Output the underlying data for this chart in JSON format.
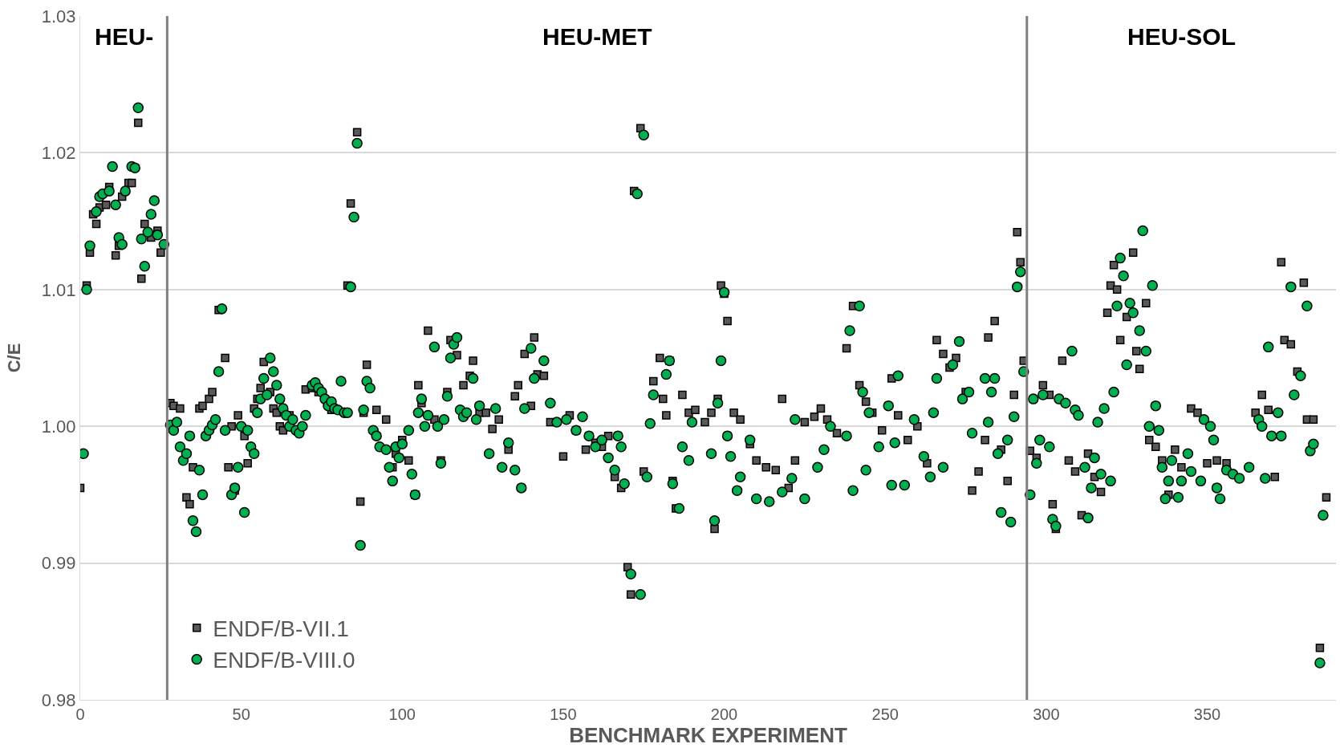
{
  "chart_data": {
    "type": "scatter",
    "xlabel": "BENCHMARK EXPERIMENT",
    "ylabel": "C/E",
    "xlim": [
      0,
      390
    ],
    "xticks": [
      0,
      50,
      100,
      150,
      200,
      250,
      300,
      350
    ],
    "ylim": [
      0.98,
      1.03
    ],
    "yticks": [
      {
        "value": 0.98,
        "label": "0.98"
      },
      {
        "value": 0.99,
        "label": "0.99"
      },
      {
        "value": 1.0,
        "label": "1.00"
      },
      {
        "value": 1.01,
        "label": "1.01"
      },
      {
        "value": 1.02,
        "label": "1.02"
      },
      {
        "value": 1.03,
        "label": "1.03"
      }
    ],
    "grid": "y",
    "legend": "bottom left",
    "ref_lines": [
      {
        "axis": "x",
        "value": 27,
        "color": "#7f7f7f"
      },
      {
        "axis": "x",
        "value": 294,
        "color": "#7f7f7f"
      }
    ],
    "annotations": [
      "HEU-",
      "HEU-MET",
      "HEU-SOL"
    ],
    "series": [
      {
        "name": "ENDF/B-VII.1",
        "color": "#595959",
        "marker": "square",
        "x": [
          0,
          2,
          3,
          4,
          5,
          6,
          8,
          9,
          11,
          12,
          13,
          15,
          16,
          18,
          19,
          20,
          22,
          24,
          25,
          28,
          29,
          31,
          33,
          34,
          35,
          37,
          38,
          40,
          41,
          43,
          45,
          46,
          47,
          48,
          49,
          51,
          52,
          54,
          55,
          56,
          57,
          59,
          60,
          61,
          62,
          63,
          65,
          70,
          72,
          74,
          78,
          83,
          84,
          86,
          87,
          88,
          89,
          92,
          95,
          97,
          98,
          100,
          102,
          104,
          105,
          106,
          108,
          110,
          112,
          114,
          115,
          117,
          119,
          121,
          122,
          124,
          126,
          128,
          130,
          133,
          135,
          136,
          138,
          140,
          141,
          142,
          144,
          146,
          150,
          152,
          154,
          157,
          160,
          162,
          164,
          166,
          168,
          170,
          171,
          172,
          174,
          175,
          178,
          180,
          181,
          182,
          183,
          184,
          185,
          187,
          189,
          191,
          194,
          196,
          197,
          198,
          199,
          200,
          201,
          203,
          205,
          208,
          210,
          213,
          216,
          218,
          220,
          222,
          225,
          228,
          230,
          232,
          235,
          238,
          240,
          242,
          244,
          246,
          249,
          252,
          254,
          257,
          260,
          263,
          266,
          268,
          270,
          272,
          275,
          277,
          279,
          281,
          282,
          284,
          286,
          288,
          290,
          291,
          292,
          293,
          295,
          297,
          299,
          301,
          302,
          303,
          305,
          307,
          309,
          311,
          313,
          315,
          317,
          319,
          320,
          321,
          322,
          323,
          325,
          327,
          328,
          329,
          331,
          332,
          334,
          336,
          338,
          340,
          342,
          345,
          347,
          350,
          353,
          356,
          365,
          367,
          369,
          371,
          373,
          374,
          376,
          378,
          380,
          381,
          383,
          385,
          387
        ],
        "values": [
          0.9955,
          1.0103,
          1.0127,
          1.0155,
          1.0148,
          1.016,
          1.0162,
          1.0175,
          1.0125,
          1.0132,
          1.0168,
          1.0178,
          1.0178,
          1.0222,
          1.0108,
          1.0148,
          1.0138,
          1.0143,
          1.0127,
          1.0017,
          1.0015,
          1.0013,
          0.9948,
          0.9943,
          0.997,
          1.0013,
          1.0015,
          1.002,
          1.0025,
          1.0085,
          1.005,
          0.997,
          1.0,
          0.9953,
          1.0008,
          0.9993,
          0.9973,
          1.0013,
          1.002,
          1.0028,
          1.0047,
          1.0025,
          1.0013,
          1.001,
          1.0,
          0.9997,
          1.0008,
          1.0027,
          1.0028,
          1.0025,
          1.0012,
          1.0103,
          1.0163,
          1.0215,
          0.9945,
          1.001,
          1.0045,
          1.0012,
          1.0005,
          0.997,
          0.998,
          0.999,
          0.9975,
          0.995,
          1.003,
          1.0017,
          1.007,
          1.0005,
          0.9975,
          1.0025,
          1.0063,
          1.0052,
          1.003,
          1.0037,
          1.0048,
          1.001,
          1.001,
          0.9998,
          1.0005,
          0.9983,
          1.0022,
          1.003,
          1.0053,
          1.0015,
          1.0065,
          1.0038,
          1.0037,
          1.0003,
          0.9978,
          1.0008,
          0.9997,
          0.9983,
          0.9988,
          0.9985,
          0.9993,
          0.9963,
          0.9955,
          0.9897,
          0.9877,
          1.0172,
          1.0218,
          0.9967,
          1.0033,
          1.005,
          1.002,
          1.0008,
          1.0048,
          0.996,
          0.994,
          1.0023,
          1.001,
          1.0012,
          1.0003,
          1.001,
          0.9925,
          1.002,
          1.0103,
          1.0097,
          1.0077,
          1.001,
          1.0005,
          0.9987,
          0.9975,
          0.997,
          0.9968,
          1.002,
          0.9955,
          0.9975,
          1.0003,
          1.0007,
          1.0013,
          1.0005,
          0.9995,
          1.0057,
          1.0088,
          1.003,
          1.0018,
          1.001,
          0.9997,
          1.0035,
          1.0008,
          0.999,
          1.0,
          0.9973,
          1.0063,
          1.0053,
          1.0043,
          1.005,
          1.0025,
          0.9953,
          0.9967,
          0.999,
          1.0065,
          1.0077,
          0.9983,
          0.996,
          1.0023,
          1.0142,
          1.012,
          1.0048,
          0.9982,
          0.9977,
          1.003,
          1.0023,
          0.9943,
          0.9925,
          1.0048,
          0.9975,
          0.9967,
          0.9935,
          0.998,
          0.9963,
          0.9952,
          1.0083,
          1.0103,
          1.0118,
          1.01,
          1.0063,
          1.008,
          1.0127,
          1.0055,
          1.0042,
          1.009,
          0.999,
          0.9985,
          0.9975,
          0.995,
          0.9983,
          0.997,
          1.0013,
          1.001,
          0.9973,
          0.9975,
          0.9973,
          1.001,
          1.0023,
          1.0012,
          0.9963,
          1.012,
          1.0063,
          1.006,
          1.004,
          1.0105,
          1.0005,
          1.0005,
          0.9838,
          0.9948
        ]
      },
      {
        "name": "ENDF/B-VIII.0",
        "color": "#00b050",
        "marker": "circle",
        "x": [
          1,
          2,
          3,
          5,
          6,
          7,
          9,
          10,
          11,
          12,
          13,
          14,
          16,
          17,
          18,
          19,
          20,
          21,
          22,
          23,
          24,
          26,
          28,
          29,
          30,
          31,
          32,
          33,
          34,
          35,
          36,
          37,
          38,
          39,
          40,
          41,
          42,
          43,
          44,
          45,
          47,
          48,
          49,
          50,
          51,
          52,
          53,
          54,
          55,
          56,
          57,
          58,
          59,
          60,
          61,
          62,
          63,
          64,
          65,
          66,
          67,
          68,
          69,
          70,
          72,
          73,
          74,
          75,
          76,
          77,
          78,
          79,
          80,
          81,
          82,
          83,
          84,
          85,
          86,
          87,
          88,
          89,
          90,
          91,
          92,
          93,
          95,
          96,
          97,
          98,
          99,
          100,
          102,
          103,
          104,
          105,
          106,
          107,
          108,
          110,
          111,
          112,
          113,
          114,
          115,
          116,
          117,
          118,
          119,
          120,
          122,
          123,
          124,
          127,
          129,
          131,
          133,
          135,
          137,
          138,
          140,
          141,
          144,
          146,
          148,
          151,
          154,
          156,
          158,
          160,
          162,
          164,
          166,
          167,
          168,
          169,
          171,
          173,
          174,
          175,
          176,
          177,
          178,
          182,
          183,
          184,
          186,
          187,
          189,
          190,
          196,
          197,
          198,
          199,
          200,
          201,
          202,
          204,
          205,
          208,
          210,
          214,
          218,
          221,
          222,
          225,
          229,
          231,
          233,
          238,
          239,
          240,
          242,
          243,
          244,
          245,
          248,
          251,
          252,
          253,
          254,
          256,
          259,
          262,
          264,
          265,
          266,
          268,
          271,
          273,
          274,
          276,
          277,
          281,
          282,
          283,
          284,
          285,
          286,
          288,
          289,
          290,
          291,
          292,
          293,
          295,
          296,
          297,
          298,
          299,
          301,
          302,
          303,
          304,
          306,
          308,
          309,
          310,
          312,
          313,
          314,
          315,
          316,
          317,
          318,
          320,
          321,
          322,
          323,
          324,
          325,
          326,
          327,
          329,
          330,
          331,
          332,
          333,
          334,
          335,
          336,
          337,
          338,
          339,
          341,
          342,
          344,
          345,
          348,
          349,
          351,
          352,
          353,
          354,
          356,
          358,
          360,
          363,
          366,
          367,
          368,
          369,
          370,
          372,
          373,
          376,
          377,
          379,
          381,
          382,
          383,
          385,
          386
        ],
        "values": [
          0.998,
          1.01,
          1.0132,
          1.0157,
          1.0168,
          1.017,
          1.0172,
          1.019,
          1.0162,
          1.0138,
          1.0133,
          1.0172,
          1.019,
          1.0189,
          1.0233,
          1.0137,
          1.0117,
          1.0142,
          1.0155,
          1.0165,
          1.014,
          1.0133,
          1.0001,
          0.9997,
          1.0003,
          0.9985,
          0.9975,
          0.998,
          0.9993,
          0.9931,
          0.9923,
          0.9968,
          0.995,
          0.9993,
          0.9997,
          1.0001,
          1.0005,
          1.004,
          1.0086,
          0.9997,
          0.995,
          0.9955,
          0.997,
          1.0,
          0.9937,
          0.9997,
          0.9985,
          0.998,
          1.001,
          1.002,
          1.0035,
          1.0023,
          1.005,
          1.004,
          1.003,
          1.002,
          1.0013,
          1.0008,
          1.0,
          1.0005,
          0.9997,
          0.9995,
          1.0,
          1.0008,
          1.003,
          1.0032,
          1.0028,
          1.0025,
          1.002,
          1.0015,
          1.0018,
          1.0013,
          1.0012,
          1.0033,
          1.001,
          1.001,
          1.0102,
          1.0153,
          1.0207,
          0.9913,
          1.0012,
          1.0033,
          1.0028,
          0.9997,
          0.9993,
          0.9985,
          0.9983,
          0.997,
          0.996,
          0.9985,
          0.9977,
          0.9987,
          0.9997,
          0.9965,
          0.995,
          1.001,
          1.002,
          1.0,
          1.0008,
          1.0058,
          1.0,
          0.9973,
          1.0005,
          1.0022,
          1.005,
          1.006,
          1.0065,
          1.0012,
          1.0007,
          1.001,
          1.0035,
          1.0005,
          1.0015,
          0.998,
          1.0013,
          0.997,
          0.9988,
          0.9968,
          0.9955,
          1.0013,
          1.0057,
          1.0035,
          1.0048,
          1.0017,
          1.0003,
          1.0005,
          0.9997,
          1.0007,
          0.9993,
          0.9985,
          0.999,
          0.9977,
          0.9968,
          0.9993,
          0.9985,
          0.9958,
          0.9892,
          1.017,
          0.9877,
          1.0213,
          0.9963,
          1.0002,
          1.0023,
          1.0038,
          1.0048,
          0.9958,
          0.994,
          0.9985,
          0.9975,
          1.0003,
          0.998,
          0.9931,
          1.0017,
          1.0048,
          1.0098,
          0.9993,
          0.9978,
          0.9953,
          0.9963,
          0.999,
          0.9947,
          0.9945,
          0.9952,
          0.9962,
          1.0005,
          0.9947,
          0.997,
          0.9983,
          1.0,
          0.9993,
          1.007,
          0.9953,
          1.0088,
          1.0025,
          0.9968,
          1.001,
          0.9985,
          1.0015,
          0.9957,
          0.9988,
          1.0037,
          0.9957,
          1.0005,
          0.9978,
          0.9963,
          1.001,
          1.0035,
          0.997,
          1.0045,
          1.0062,
          1.002,
          1.0025,
          0.9995,
          1.0035,
          1.0003,
          1.0025,
          1.0035,
          0.998,
          0.9937,
          0.999,
          0.993,
          1.0007,
          1.0102,
          1.0113,
          1.004,
          0.995,
          1.002,
          0.9973,
          0.999,
          1.0023,
          0.9985,
          0.9932,
          0.9927,
          1.002,
          1.0017,
          1.0055,
          1.0012,
          1.0008,
          0.997,
          0.9933,
          0.9955,
          0.9977,
          1.0003,
          0.9965,
          1.0013,
          0.996,
          1.0025,
          1.0088,
          1.0123,
          1.011,
          1.0045,
          1.009,
          1.0083,
          1.007,
          1.0143,
          1.0055,
          1.0,
          1.0103,
          1.0015,
          0.9997,
          0.997,
          0.9947,
          0.996,
          0.9975,
          0.9948,
          0.996,
          0.998,
          0.9967,
          0.996,
          1.0005,
          1.0,
          0.999,
          0.9955,
          0.9947,
          0.9968,
          0.9965,
          0.9962,
          0.997,
          1.0005,
          1.0,
          0.9962,
          1.0058,
          0.9993,
          1.001,
          0.9993,
          1.0102,
          1.0023,
          1.0037,
          1.0088,
          0.9982,
          0.9987,
          0.9827,
          0.9935
        ]
      }
    ]
  }
}
